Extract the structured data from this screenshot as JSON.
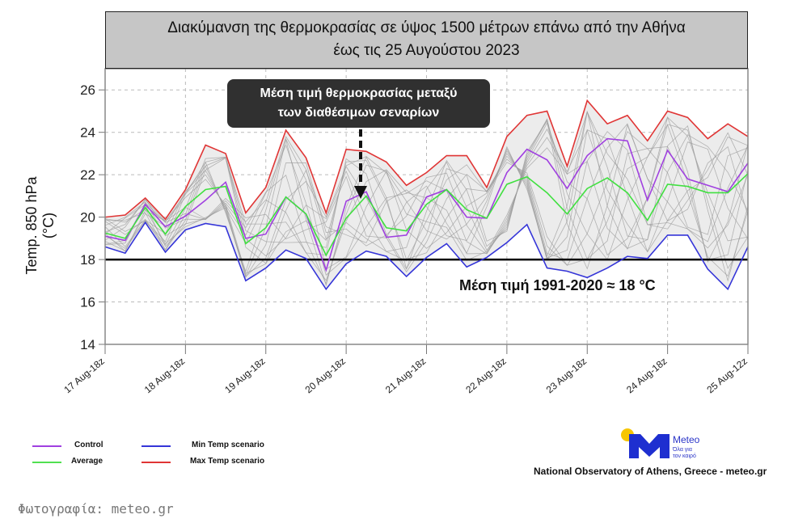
{
  "chart_data": {
    "type": "line",
    "title_line1": "Διακύμανση της θερμοκρασίας σε ύψος 1500 μέτρων επάνω από την Αθήνα",
    "title_line2": "έως τις 25 Αυγούστου 2023",
    "ylabel": "Temp. 850 hPa (°C)",
    "xlabel": "",
    "ylim": [
      14,
      27
    ],
    "yticks": [
      14,
      16,
      18,
      20,
      22,
      24,
      26
    ],
    "xtick_labels": [
      "17 Aug-18z",
      "18 Aug-18z",
      "19 Aug-18z",
      "20 Aug-18z",
      "21 Aug-18z",
      "22 Aug-18z",
      "23 Aug-18z",
      "24 Aug-18z",
      "25 Aug-12z"
    ],
    "points_per_tick": 4,
    "grid": true,
    "reference_line": {
      "value": 18,
      "label": "Μέση τιμή 1991-2020 ≈ 18 °C"
    },
    "annotation": {
      "line1": "Μέση τιμή θερμοκρασίας μεταξύ",
      "line2": "των διαθέσιμων σεναρίων"
    },
    "series": [
      {
        "name": "Control",
        "color": "#a040e0",
        "values": [
          19.1,
          18.9,
          20.6,
          19.55,
          20.05,
          20.8,
          21.65,
          19.0,
          19.2,
          20.95,
          20.15,
          17.5,
          20.75,
          21.2,
          19.05,
          19.15,
          20.95,
          21.3,
          20.0,
          19.95,
          22.1,
          23.2,
          22.7,
          21.35,
          22.9,
          23.7,
          23.6,
          20.8,
          23.15,
          21.8,
          21.5,
          21.2,
          22.55
        ]
      },
      {
        "name": "Average",
        "color": "#40e040",
        "values": [
          19.25,
          19.0,
          20.45,
          19.2,
          20.5,
          21.3,
          21.45,
          18.75,
          19.5,
          20.95,
          20.15,
          18.2,
          19.95,
          21.0,
          19.5,
          19.35,
          20.6,
          21.3,
          20.35,
          19.95,
          21.55,
          21.9,
          21.15,
          20.15,
          21.35,
          21.85,
          21.15,
          19.85,
          21.55,
          21.45,
          21.15,
          21.15,
          22.05
        ]
      },
      {
        "name": "Min Temp scenario",
        "color": "#3535d8",
        "values": [
          18.6,
          18.3,
          19.75,
          18.35,
          19.4,
          19.7,
          19.55,
          17.0,
          17.6,
          18.45,
          18.05,
          16.6,
          17.8,
          18.4,
          18.15,
          17.2,
          18.1,
          18.75,
          17.65,
          18.1,
          18.8,
          19.65,
          17.6,
          17.45,
          17.15,
          17.6,
          18.15,
          18.05,
          19.15,
          19.15,
          17.55,
          16.6,
          18.6
        ]
      },
      {
        "name": "Max Temp scenario",
        "color": "#e03535",
        "values": [
          20.0,
          20.1,
          20.9,
          19.9,
          21.3,
          23.4,
          23.0,
          20.2,
          21.4,
          24.1,
          22.8,
          20.2,
          23.2,
          23.1,
          22.6,
          21.5,
          22.1,
          22.9,
          22.9,
          21.4,
          23.8,
          24.8,
          25.0,
          22.4,
          25.5,
          24.4,
          24.8,
          23.6,
          25.0,
          24.7,
          23.7,
          24.4,
          23.8
        ]
      }
    ],
    "legend": {
      "placement": "bottom-left",
      "entries": [
        "Control",
        "Average",
        "Min Temp scenario",
        "Max Temp scenario"
      ]
    }
  },
  "branding": {
    "logo_name": "Meteo",
    "logo_tagline_1": "Όλα για",
    "logo_tagline_2": "τον καιρό",
    "footer": "National Observatory of Athens, Greece - meteo.gr",
    "credit": "Φωτογραφία: meteo.gr"
  }
}
